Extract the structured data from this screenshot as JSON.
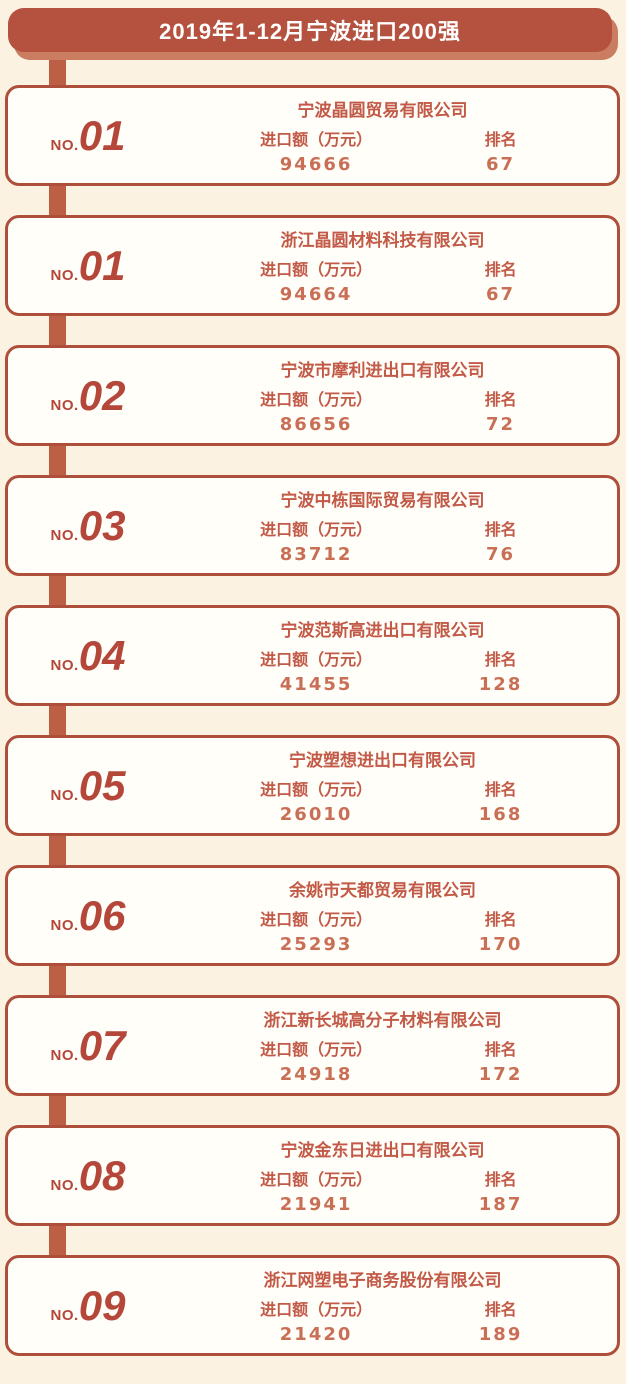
{
  "header": {
    "title": "2019年1-12月宁波进口200强"
  },
  "labels": {
    "rank_prefix": "NO.",
    "amount_label": "进口额（万元）",
    "rank_label": "排名"
  },
  "colors": {
    "background": "#fbf2e1",
    "banner": "#b5513f",
    "banner_shadow": "#ca7d61",
    "spine": "#bd5f44",
    "card_border": "#ad4f3a",
    "card_bg": "#fffef9",
    "text_red": "#c25a47",
    "value_red": "#c96f56",
    "number_red": "#b4473a",
    "title_text": "#ffffff"
  },
  "companies": [
    {
      "no": "01",
      "name": "宁波晶圆贸易有限公司",
      "amount": "94666",
      "rank": "67"
    },
    {
      "no": "01",
      "name": "浙江晶圆材料科技有限公司",
      "amount": "94664",
      "rank": "67"
    },
    {
      "no": "02",
      "name": "宁波市摩利进出口有限公司",
      "amount": "86656",
      "rank": "72"
    },
    {
      "no": "03",
      "name": "宁波中栋国际贸易有限公司",
      "amount": "83712",
      "rank": "76"
    },
    {
      "no": "04",
      "name": "宁波范斯高进出口有限公司",
      "amount": "41455",
      "rank": "128"
    },
    {
      "no": "05",
      "name": "宁波塑想进出口有限公司",
      "amount": "26010",
      "rank": "168"
    },
    {
      "no": "06",
      "name": "余姚市天都贸易有限公司",
      "amount": "25293",
      "rank": "170"
    },
    {
      "no": "07",
      "name": "浙江新长城高分子材料有限公司",
      "amount": "24918",
      "rank": "172"
    },
    {
      "no": "08",
      "name": "宁波金东日进出口有限公司",
      "amount": "21941",
      "rank": "187"
    },
    {
      "no": "09",
      "name": "浙江网塑电子商务股份有限公司",
      "amount": "21420",
      "rank": "189"
    }
  ]
}
